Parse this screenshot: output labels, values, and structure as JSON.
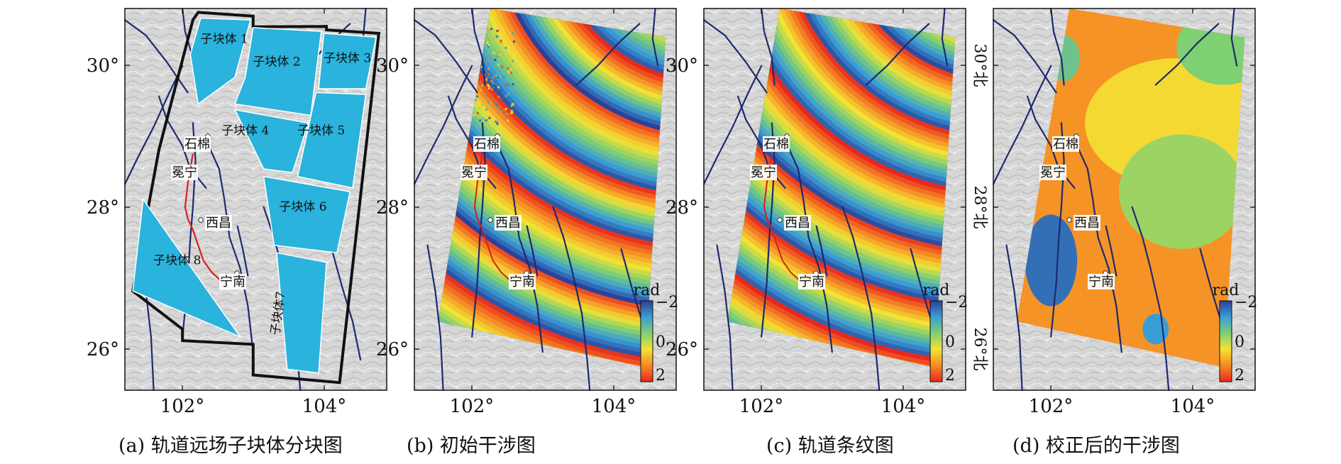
{
  "axis": {
    "lon_ticks": [
      "102°",
      "104°"
    ],
    "lat_ticks": [
      "30°",
      "28°",
      "26°"
    ],
    "lat_ticks_rotated": [
      "30°北",
      "28°北",
      "26°北"
    ]
  },
  "cities": [
    {
      "name": "石棉",
      "lon": 102.36,
      "lat": 29.0
    },
    {
      "name": "冕宁",
      "lon": 102.17,
      "lat": 28.55
    },
    {
      "name": "西昌",
      "lon": 102.26,
      "lat": 27.82
    },
    {
      "name": "宁南",
      "lon": 102.77,
      "lat": 27.07
    }
  ],
  "colorbar": {
    "unit": "rad",
    "tick_labels": [
      "−2",
      "0",
      "2"
    ],
    "colors": [
      "#2c3f98",
      "#3a9ed6",
      "#7fcf73",
      "#f4e233",
      "#f58a25",
      "#e8281d"
    ]
  },
  "panels": [
    {
      "id": "a",
      "caption": "(a) 轨道远场子块体分块图"
    },
    {
      "id": "b",
      "caption": "(b) 初始干涉图"
    },
    {
      "id": "c",
      "caption": "(c) 轨道条纹图"
    },
    {
      "id": "d",
      "caption": "(d) 校正后的干涉图"
    }
  ],
  "subblocks": [
    {
      "label": "子块体 1"
    },
    {
      "label": "子块体 2"
    },
    {
      "label": "子块体 3"
    },
    {
      "label": "子块体 4"
    },
    {
      "label": "子块体 5"
    },
    {
      "label": "子块体 6"
    },
    {
      "label": "子块体7"
    },
    {
      "label": "子块体 8"
    }
  ],
  "colors": {
    "subblock_fill": "#2ab3dc",
    "map_background": "#d7d7d7",
    "fault": "#1e2a6e",
    "rupture": "#d8201c"
  }
}
